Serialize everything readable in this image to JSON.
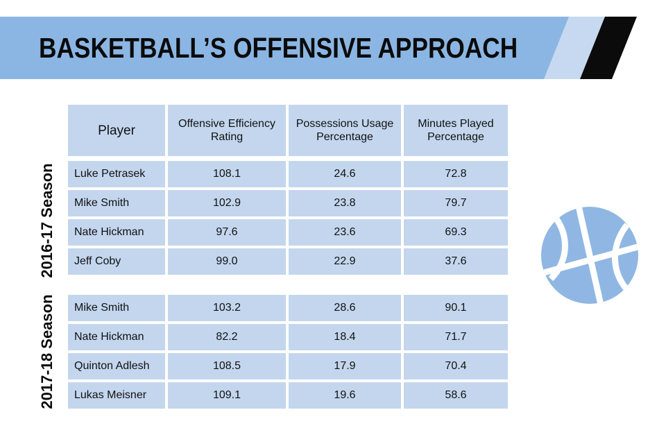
{
  "title": "BASKETBALL’S OFFENSIVE APPROACH",
  "colors": {
    "banner": "#8bb6e4",
    "cell": "#c3d6ee",
    "ball": "#90b7e3",
    "stripe_light": "#c7d9f1",
    "stripe_dark": "#0b0b0b"
  },
  "chart_data": {
    "type": "table",
    "columns": [
      "Player",
      "Offensive Efficiency Rating",
      "Possessions Usage Percentage",
      "Minutes Played Percentage"
    ],
    "groups": [
      {
        "season": "2016-17 Season",
        "rows": [
          [
            "Luke Petrasek",
            "108.1",
            "24.6",
            "72.8"
          ],
          [
            "Mike Smith",
            "102.9",
            "23.8",
            "79.7"
          ],
          [
            "Nate Hickman",
            "97.6",
            "23.6",
            "69.3"
          ],
          [
            "Jeff Coby",
            "99.0",
            "22.9",
            "37.6"
          ]
        ]
      },
      {
        "season": "2017-18 Season",
        "rows": [
          [
            "Mike Smith",
            "103.2",
            "28.6",
            "90.1"
          ],
          [
            "Nate Hickman",
            "82.2",
            "18.4",
            "71.7"
          ],
          [
            "Quinton Adlesh",
            "108.5",
            "17.9",
            "70.4"
          ],
          [
            "Lukas Meisner",
            "109.1",
            "19.6",
            "58.6"
          ]
        ]
      }
    ]
  },
  "icons": {
    "ball": "basketball-icon"
  }
}
